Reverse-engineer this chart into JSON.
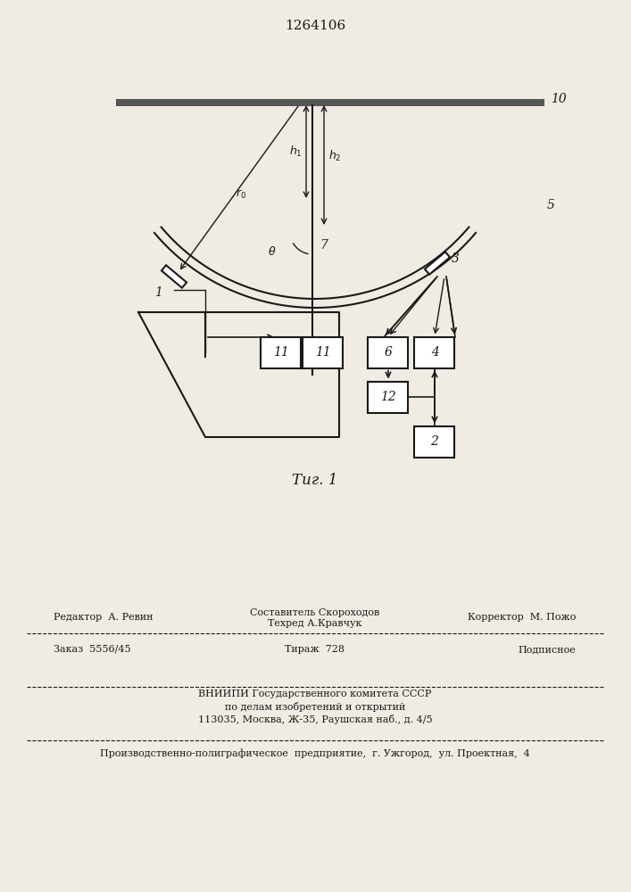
{
  "title": "1264106",
  "fig_caption": "Τиг. 1",
  "bg_color": "#f0ece4",
  "line_color": "#1a1a1a",
  "footer_line1_left": "Редактор  А. Ревин",
  "footer_line1_center": "Составитель Скороходов\nТехред А.Кравчук",
  "footer_line1_right": "Корректор  М. Пожо",
  "footer_line2_left": "Заказ  5556/45",
  "footer_line2_center": "Тираж  728",
  "footer_line2_right": "Подписное",
  "footer_line3": "ВНИИПИ Государственного комитета СССР",
  "footer_line4": "по делам изобретений и открытий",
  "footer_line5": "113035, Москва, Ж-35, Раушская наб., д. 4/5",
  "footer_line6": "Производственно-полиграфическое  предприятие,  г. Ужгород,  ул. Проектная,  4"
}
